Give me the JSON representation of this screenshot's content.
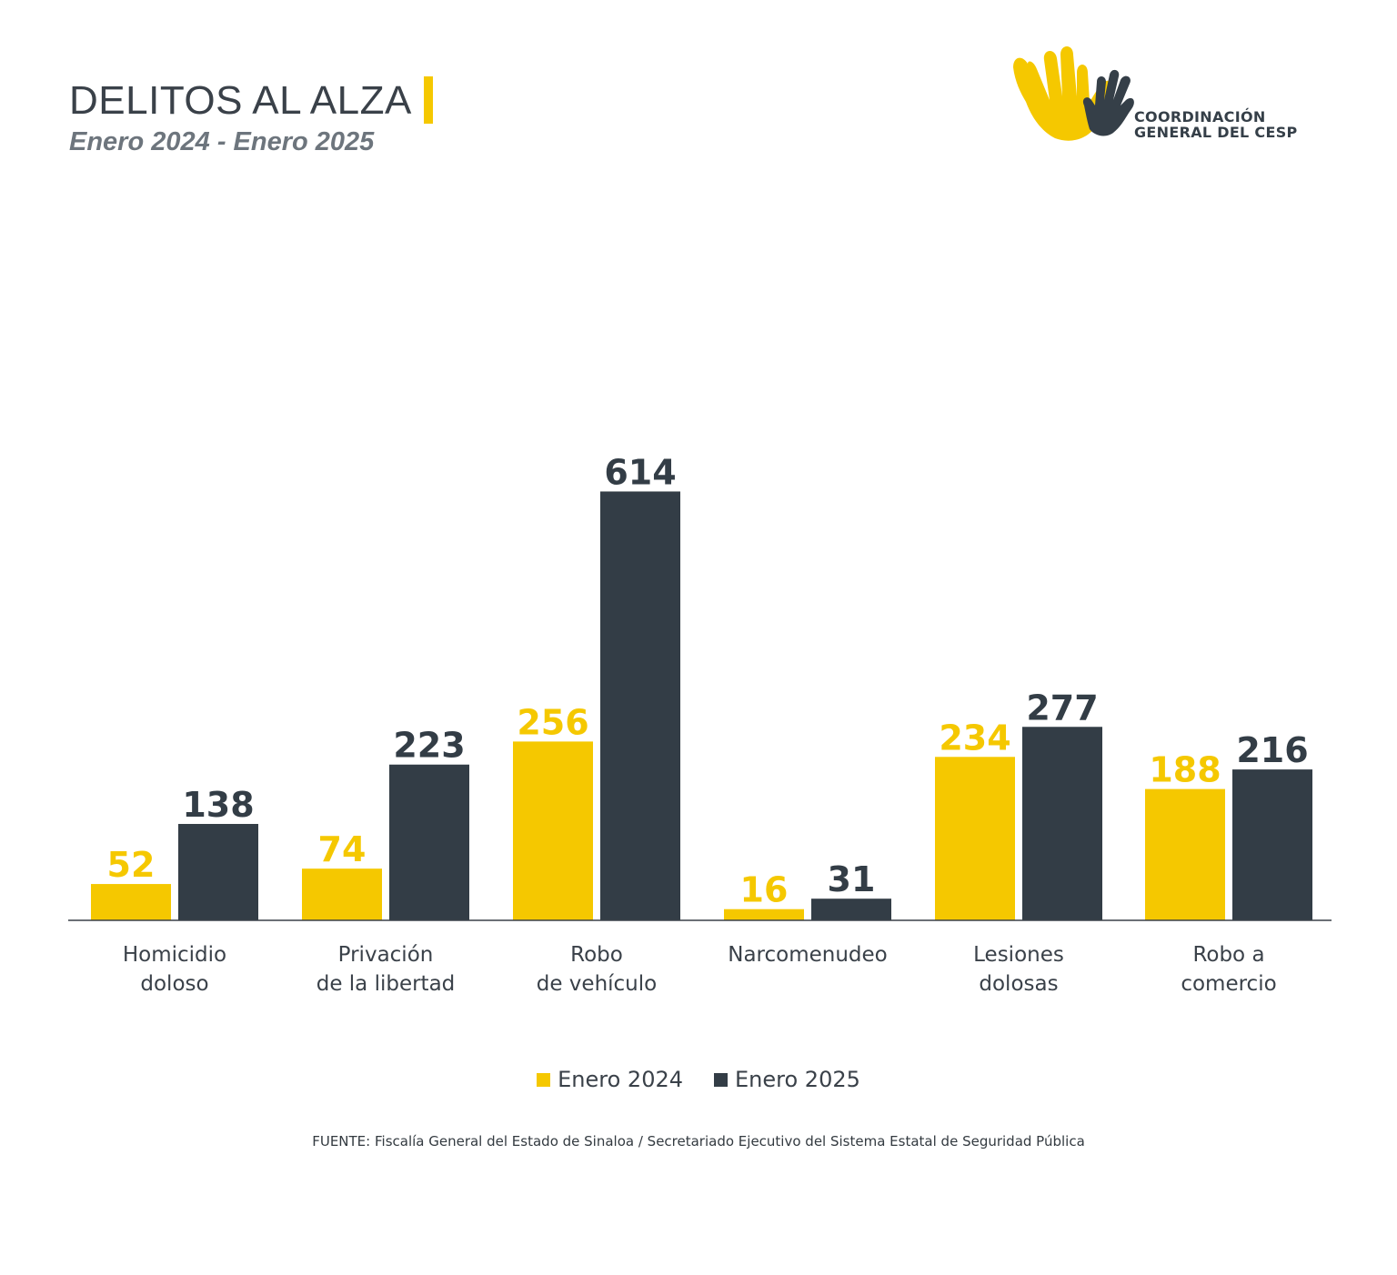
{
  "header": {
    "title": "DELITOS AL ALZA",
    "subtitle": "Enero 2024 - Enero 2025"
  },
  "logo": {
    "line1": "COORDINACIÓN",
    "line2": "GENERAL DEL CESP",
    "icon": "hands-icon"
  },
  "colors": {
    "series_2024": "#f5c800",
    "series_2025": "#333d46",
    "text": "#3a4149"
  },
  "chart_data": {
    "type": "bar",
    "categories": [
      [
        "Homicidio",
        "doloso"
      ],
      [
        "Privación",
        "de la libertad"
      ],
      [
        "Robo",
        "de vehículo"
      ],
      [
        "Narcomenudeo"
      ],
      [
        "Lesiones",
        "dolosas"
      ],
      [
        "Robo a",
        "comercio"
      ]
    ],
    "series": [
      {
        "name": "Enero 2024",
        "values": [
          52,
          74,
          256,
          16,
          234,
          188
        ]
      },
      {
        "name": "Enero 2025",
        "values": [
          138,
          223,
          614,
          31,
          277,
          216
        ]
      }
    ],
    "data_labels": true,
    "grid": false,
    "legend_position": "bottom"
  },
  "legend": {
    "items": [
      "Enero 2024",
      "Enero 2025"
    ]
  },
  "footer": {
    "source": "FUENTE: Fiscalía General del Estado de Sinaloa / Secretariado Ejecutivo del Sistema Estatal de Seguridad Pública"
  }
}
